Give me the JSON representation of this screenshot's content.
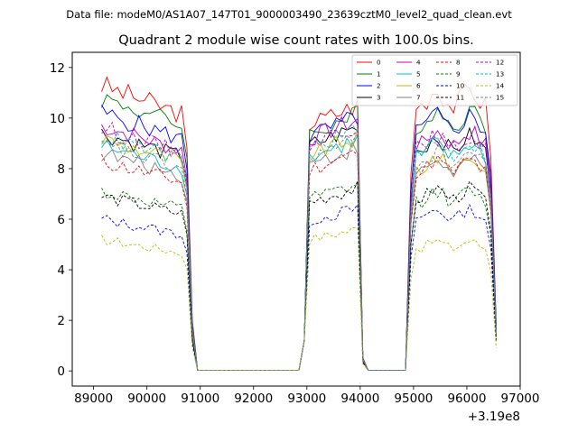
{
  "chart_data": {
    "type": "line",
    "suptitle": "Data file: modeM0/AS1A07_147T01_9000003490_23639cztM0_level2_quad_clean.evt",
    "title": "Quadrant 2 module wise count rates with 100.0s bins.",
    "xlabel": "",
    "ylabel": "",
    "x_offset_label": "+3.19e8",
    "xlim": [
      88600,
      97000
    ],
    "ylim": [
      -0.6,
      12.6
    ],
    "xticks": [
      89000,
      90000,
      91000,
      92000,
      93000,
      94000,
      95000,
      96000,
      97000
    ],
    "xtick_labels": [
      "89000",
      "90000",
      "91000",
      "92000",
      "93000",
      "94000",
      "95000",
      "96000",
      "97000"
    ],
    "yticks": [
      0,
      2,
      4,
      6,
      8,
      10,
      12
    ],
    "ytick_labels": [
      "0",
      "2",
      "4",
      "6",
      "8",
      "10",
      "12"
    ],
    "grid": false,
    "legend_position": "top-right",
    "segments": [
      {
        "start": 89150,
        "n": 18
      },
      {
        "start": 92950,
        "n": 12
      },
      {
        "start": 94950,
        "n": 17
      }
    ],
    "zero_value": 0.02,
    "series": [
      {
        "name": "0",
        "color": "#ff0000",
        "dash": "solid",
        "levels": [
          11.3,
          10.5,
          10.8
        ]
      },
      {
        "name": "1",
        "color": "#008000",
        "dash": "solid",
        "levels": [
          10.8,
          10.1,
          10.0
        ]
      },
      {
        "name": "2",
        "color": "#0000ff",
        "dash": "solid",
        "levels": [
          10.2,
          10.0,
          9.8
        ]
      },
      {
        "name": "3",
        "color": "#000000",
        "dash": "solid",
        "levels": [
          9.4,
          9.6,
          9.0
        ]
      },
      {
        "name": "4",
        "color": "#bf00bf",
        "dash": "solid",
        "levels": [
          9.7,
          9.9,
          9.2
        ]
      },
      {
        "name": "5",
        "color": "#00bfbf",
        "dash": "solid",
        "levels": [
          8.9,
          9.1,
          8.7
        ]
      },
      {
        "name": "6",
        "color": "#bfbf00",
        "dash": "solid",
        "levels": [
          9.2,
          9.2,
          8.2
        ]
      },
      {
        "name": "7",
        "color": "#808080",
        "dash": "solid",
        "levels": [
          8.6,
          8.8,
          8.1
        ]
      },
      {
        "name": "8",
        "color": "#ff0000",
        "dash": "dashed",
        "levels": [
          8.3,
          8.6,
          8.1
        ]
      },
      {
        "name": "9",
        "color": "#008000",
        "dash": "dashed",
        "levels": [
          7.1,
          7.3,
          6.9
        ]
      },
      {
        "name": "10",
        "color": "#0000ff",
        "dash": "dashed",
        "levels": [
          6.0,
          6.4,
          6.2
        ]
      },
      {
        "name": "11",
        "color": "#000000",
        "dash": "dashed",
        "levels": [
          6.9,
          7.2,
          7.0
        ]
      },
      {
        "name": "12",
        "color": "#bf00bf",
        "dash": "dashed",
        "levels": [
          9.6,
          9.7,
          9.0
        ]
      },
      {
        "name": "13",
        "color": "#00bfbf",
        "dash": "dashed",
        "levels": [
          9.3,
          9.5,
          8.8
        ]
      },
      {
        "name": "14",
        "color": "#bfbf00",
        "dash": "dashed",
        "levels": [
          5.2,
          5.6,
          5.0
        ]
      },
      {
        "name": "15",
        "color": "#808080",
        "dash": "dashed",
        "levels": [
          8.9,
          9.1,
          8.4
        ]
      }
    ]
  }
}
